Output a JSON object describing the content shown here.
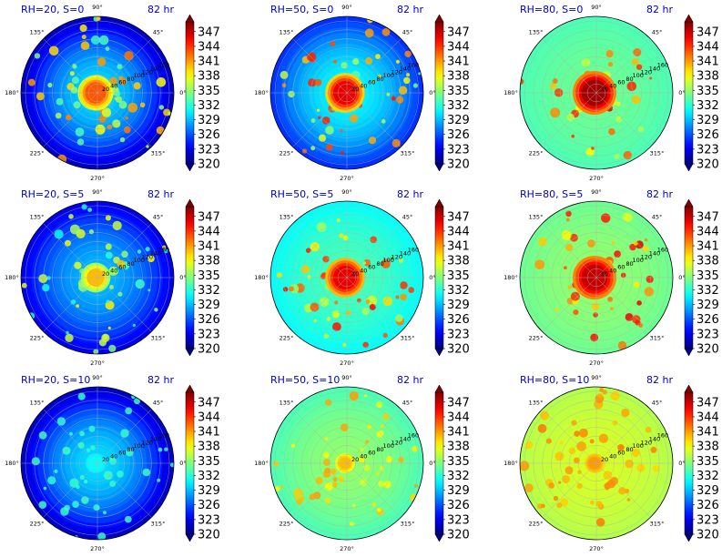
{
  "chart_data": {
    "type": "heatmap",
    "projection": "polar",
    "grid": true,
    "colorbar": {
      "ticks": [
        "347",
        "344",
        "341",
        "338",
        "335",
        "332",
        "329",
        "326",
        "323",
        "320"
      ],
      "range": [
        320,
        349
      ],
      "extend": "both",
      "colormap": "jet"
    },
    "angle_ticks": [
      "90°",
      "45°",
      "0°",
      "315°",
      "270°",
      "225°",
      "180°",
      "135°"
    ],
    "radial_ticks": [
      "20",
      "40",
      "60",
      "80",
      "100",
      "120",
      "140",
      "160"
    ],
    "panels": [
      {
        "title": "RH=20, S=0",
        "time": "82 hr",
        "core": 343,
        "core_r": 0.18,
        "bg_outer": 322,
        "bg_inner": 330,
        "rings": 0.6
      },
      {
        "title": "RH=50, S=0",
        "time": "82 hr",
        "core": 346,
        "core_r": 0.2,
        "bg_outer": 325,
        "bg_inner": 331,
        "rings": 0.5
      },
      {
        "title": "RH=80, S=0",
        "time": "82 hr",
        "core": 348,
        "core_r": 0.22,
        "bg_outer": 333,
        "bg_inner": 334,
        "rings": 0.2
      },
      {
        "title": "RH=20, S=5",
        "time": "82 hr",
        "core": 340,
        "core_r": 0.15,
        "bg_outer": 323,
        "bg_inner": 329,
        "rings": 0.5
      },
      {
        "title": "RH=50, S=5",
        "time": "82 hr",
        "core": 346,
        "core_r": 0.2,
        "bg_outer": 331,
        "bg_inner": 333,
        "rings": 0.5
      },
      {
        "title": "RH=80, S=5",
        "time": "82 hr",
        "core": 347,
        "core_r": 0.22,
        "bg_outer": 334,
        "bg_inner": 335,
        "rings": 0.4
      },
      {
        "title": "RH=20, S=10",
        "time": "82 hr",
        "core": 331,
        "core_r": 0.1,
        "bg_outer": 322,
        "bg_inner": 330,
        "rings": 0.4
      },
      {
        "title": "RH=50, S=10",
        "time": "82 hr",
        "core": 340,
        "core_r": 0.1,
        "bg_outer": 333,
        "bg_inner": 335,
        "rings": 0.5
      },
      {
        "title": "RH=80, S=10",
        "time": "82 hr",
        "core": 341,
        "core_r": 0.1,
        "bg_outer": 336,
        "bg_inner": 337,
        "rings": 0.6
      }
    ]
  }
}
